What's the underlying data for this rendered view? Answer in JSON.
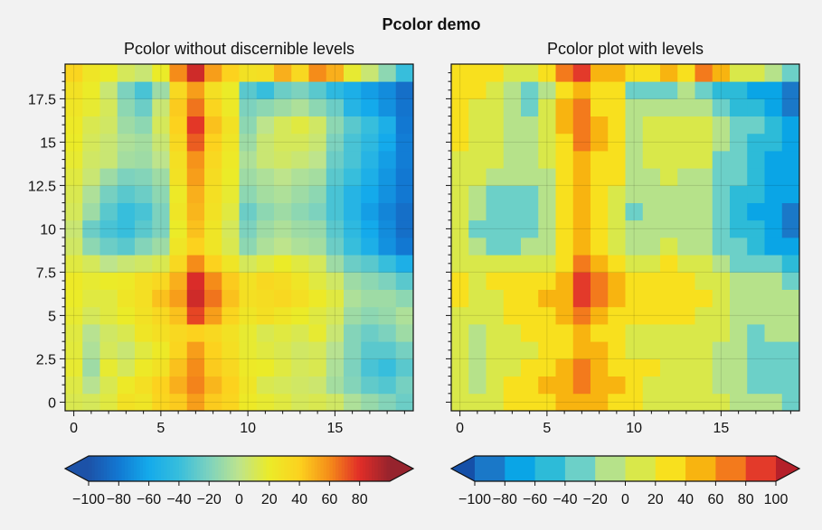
{
  "figure": {
    "suptitle": "Pcolor demo"
  },
  "chart_data": [
    {
      "type": "heatmap",
      "title": "Pcolor without discernible levels",
      "xlabel": "",
      "ylabel": "",
      "xlim": [
        -0.5,
        19.5
      ],
      "ylim": [
        -0.5,
        19.5
      ],
      "grid": true,
      "xticks": [
        0,
        5,
        10,
        15
      ],
      "xtick_labels": [
        "0",
        "5",
        "10",
        "15"
      ],
      "yticks": [
        0,
        2.5,
        5,
        7.5,
        10,
        12.5,
        15,
        17.5
      ],
      "ytick_labels": [
        "0",
        "2.5",
        "5",
        "7.5",
        "10",
        "12.5",
        "15",
        "17.5"
      ],
      "colormap": "continuous",
      "vmin": -100,
      "vmax": 100,
      "colorbar": {
        "ticks": [
          -100,
          -80,
          -60,
          -40,
          -20,
          0,
          20,
          40,
          60,
          80
        ],
        "tick_labels": [
          "−100",
          "−80",
          "−60",
          "−40",
          "−20",
          "0",
          "20",
          "40",
          "60",
          "80"
        ],
        "extend": "both"
      },
      "z": [
        [
          12,
          10,
          15,
          28,
          25,
          38,
          42,
          55,
          42,
          38,
          22,
          18,
          15,
          10,
          12,
          8,
          -5,
          -12,
          -18,
          -25
        ],
        [
          14,
          -2,
          12,
          22,
          30,
          40,
          50,
          62,
          48,
          40,
          25,
          12,
          10,
          8,
          6,
          -8,
          -18,
          -28,
          -32,
          -22
        ],
        [
          18,
          -10,
          18,
          10,
          22,
          28,
          45,
          60,
          42,
          35,
          22,
          20,
          15,
          10,
          12,
          -5,
          -20,
          -35,
          -40,
          -30
        ],
        [
          16,
          -5,
          10,
          5,
          15,
          22,
          38,
          55,
          40,
          30,
          18,
          15,
          12,
          8,
          10,
          -2,
          -18,
          -30,
          -30,
          -22
        ],
        [
          15,
          -2,
          8,
          12,
          25,
          30,
          35,
          40,
          35,
          28,
          18,
          12,
          15,
          12,
          18,
          5,
          -18,
          -25,
          -20,
          -10
        ],
        [
          18,
          10,
          15,
          20,
          28,
          35,
          45,
          75,
          55,
          38,
          25,
          30,
          25,
          20,
          15,
          10,
          -10,
          -15,
          -12,
          -5
        ],
        [
          20,
          15,
          15,
          25,
          30,
          45,
          55,
          85,
          65,
          45,
          30,
          32,
          35,
          30,
          22,
          15,
          -5,
          -10,
          -10,
          -15
        ],
        [
          22,
          18,
          20,
          22,
          30,
          35,
          50,
          82,
          60,
          42,
          28,
          35,
          32,
          25,
          15,
          8,
          -10,
          -15,
          -20,
          -30
        ],
        [
          15,
          10,
          0,
          5,
          8,
          12,
          35,
          60,
          40,
          25,
          10,
          15,
          20,
          15,
          10,
          -10,
          -25,
          -30,
          -40,
          -55
        ],
        [
          8,
          -15,
          -25,
          -30,
          -18,
          -10,
          25,
          40,
          25,
          12,
          -15,
          -5,
          0,
          -5,
          -8,
          -25,
          -40,
          -55,
          -70,
          -80
        ],
        [
          5,
          -25,
          -35,
          -40,
          -30,
          -20,
          20,
          45,
          25,
          10,
          -20,
          -10,
          -5,
          -10,
          -12,
          -30,
          -45,
          -60,
          -72,
          -85
        ],
        [
          10,
          -10,
          -30,
          -40,
          -35,
          -20,
          25,
          48,
          28,
          15,
          -25,
          -15,
          -10,
          -15,
          -20,
          -35,
          -50,
          -65,
          -75,
          -85
        ],
        [
          12,
          -5,
          -22,
          -30,
          -25,
          -15,
          22,
          50,
          30,
          18,
          -15,
          -8,
          -5,
          -10,
          -15,
          -35,
          -50,
          -60,
          -70,
          -80
        ],
        [
          15,
          5,
          -10,
          -20,
          -18,
          -10,
          28,
          55,
          32,
          20,
          -10,
          -5,
          0,
          -5,
          -8,
          -30,
          -40,
          -55,
          -68,
          -80
        ],
        [
          18,
          8,
          5,
          -8,
          -10,
          0,
          30,
          58,
          35,
          22,
          -5,
          5,
          8,
          5,
          0,
          -25,
          -35,
          -50,
          -65,
          -78
        ],
        [
          20,
          10,
          5,
          -5,
          -8,
          5,
          35,
          70,
          40,
          25,
          -10,
          5,
          10,
          10,
          5,
          -20,
          -35,
          -45,
          -60,
          -78
        ],
        [
          22,
          12,
          8,
          -10,
          -15,
          10,
          40,
          78,
          45,
          28,
          -15,
          0,
          10,
          15,
          8,
          -15,
          -30,
          -40,
          -55,
          -80
        ],
        [
          25,
          18,
          10,
          -15,
          -25,
          5,
          42,
          65,
          38,
          22,
          -20,
          -15,
          -10,
          -5,
          -15,
          -25,
          -50,
          -60,
          -70,
          -82
        ],
        [
          28,
          20,
          5,
          -20,
          -35,
          -10,
          35,
          55,
          30,
          20,
          -30,
          -40,
          -25,
          -20,
          -30,
          -45,
          -55,
          -65,
          -72,
          -85
        ],
        [
          38,
          25,
          20,
          10,
          5,
          20,
          60,
          85,
          55,
          40,
          28,
          30,
          50,
          35,
          60,
          50,
          18,
          5,
          -15,
          -40
        ]
      ]
    },
    {
      "type": "heatmap",
      "title": "Pcolor plot with levels",
      "xlabel": "",
      "ylabel": "",
      "xlim": [
        -0.5,
        19.5
      ],
      "ylim": [
        -0.5,
        19.5
      ],
      "grid": true,
      "xticks": [
        0,
        5,
        10,
        15
      ],
      "xtick_labels": [
        "0",
        "5",
        "10",
        "15"
      ],
      "yticks": [
        0,
        2.5,
        5,
        7.5,
        10,
        12.5,
        15,
        17.5
      ],
      "ytick_labels": [
        "",
        "",
        "",
        "",
        "",
        "",
        "",
        ""
      ],
      "colormap": "discrete",
      "levels": [
        -100,
        -80,
        -60,
        -40,
        -20,
        0,
        20,
        40,
        60,
        80,
        100
      ],
      "colorbar": {
        "ticks": [
          -100,
          -80,
          -60,
          -40,
          -20,
          0,
          20,
          40,
          60,
          80,
          100
        ],
        "tick_labels": [
          "−100",
          "−80",
          "−60",
          "−40",
          "−20",
          "0",
          "20",
          "40",
          "60",
          "80",
          "100"
        ],
        "extend": "both"
      },
      "z": [
        [
          12,
          10,
          15,
          28,
          25,
          38,
          42,
          55,
          42,
          38,
          22,
          18,
          15,
          10,
          12,
          8,
          -5,
          -12,
          -18,
          -25
        ],
        [
          14,
          -2,
          12,
          22,
          30,
          40,
          50,
          62,
          48,
          40,
          25,
          12,
          10,
          8,
          6,
          -8,
          -18,
          -28,
          -32,
          -22
        ],
        [
          18,
          -10,
          18,
          10,
          22,
          28,
          45,
          60,
          42,
          35,
          22,
          20,
          15,
          10,
          12,
          -5,
          -20,
          -35,
          -40,
          -30
        ],
        [
          16,
          -5,
          10,
          5,
          15,
          22,
          38,
          55,
          40,
          30,
          18,
          15,
          12,
          8,
          10,
          -2,
          -18,
          -30,
          -30,
          -22
        ],
        [
          15,
          -2,
          8,
          12,
          25,
          30,
          35,
          40,
          35,
          28,
          18,
          12,
          15,
          12,
          18,
          5,
          -18,
          -25,
          -20,
          -10
        ],
        [
          18,
          10,
          15,
          20,
          28,
          35,
          45,
          75,
          55,
          38,
          25,
          30,
          25,
          20,
          15,
          10,
          -10,
          -15,
          -12,
          -5
        ],
        [
          20,
          15,
          15,
          25,
          30,
          45,
          55,
          85,
          65,
          45,
          30,
          32,
          35,
          30,
          22,
          15,
          -5,
          -10,
          -10,
          -15
        ],
        [
          22,
          18,
          20,
          22,
          30,
          35,
          50,
          82,
          60,
          42,
          28,
          35,
          32,
          25,
          15,
          8,
          -10,
          -15,
          -20,
          -30
        ],
        [
          15,
          10,
          0,
          5,
          8,
          12,
          35,
          60,
          40,
          25,
          10,
          15,
          20,
          15,
          10,
          -10,
          -25,
          -30,
          -40,
          -55
        ],
        [
          8,
          -15,
          -25,
          -30,
          -18,
          -10,
          25,
          40,
          25,
          12,
          -15,
          -5,
          0,
          -5,
          -8,
          -25,
          -40,
          -55,
          -70,
          -80
        ],
        [
          5,
          -25,
          -35,
          -40,
          -30,
          -20,
          20,
          45,
          25,
          10,
          -20,
          -10,
          -5,
          -10,
          -12,
          -30,
          -45,
          -60,
          -72,
          -85
        ],
        [
          10,
          -10,
          -30,
          -40,
          -35,
          -20,
          25,
          48,
          28,
          15,
          -25,
          -15,
          -10,
          -15,
          -20,
          -35,
          -50,
          -65,
          -75,
          -85
        ],
        [
          12,
          -5,
          -22,
          -30,
          -25,
          -15,
          22,
          50,
          30,
          18,
          -15,
          -8,
          -5,
          -10,
          -15,
          -35,
          -50,
          -60,
          -70,
          -80
        ],
        [
          15,
          5,
          -10,
          -20,
          -18,
          -10,
          28,
          55,
          32,
          20,
          -10,
          -5,
          0,
          -5,
          -8,
          -30,
          -40,
          -55,
          -68,
          -80
        ],
        [
          18,
          8,
          5,
          -8,
          -10,
          0,
          30,
          58,
          35,
          22,
          -5,
          5,
          8,
          5,
          0,
          -25,
          -35,
          -50,
          -65,
          -78
        ],
        [
          20,
          10,
          5,
          -5,
          -8,
          5,
          35,
          70,
          40,
          25,
          -10,
          5,
          10,
          10,
          5,
          -20,
          -35,
          -45,
          -60,
          -78
        ],
        [
          22,
          12,
          8,
          -10,
          -15,
          10,
          40,
          78,
          45,
          28,
          -15,
          0,
          10,
          15,
          8,
          -15,
          -30,
          -40,
          -55,
          -80
        ],
        [
          25,
          18,
          10,
          -15,
          -25,
          5,
          42,
          65,
          38,
          22,
          -20,
          -15,
          -10,
          -5,
          -15,
          -25,
          -50,
          -60,
          -70,
          -82
        ],
        [
          28,
          20,
          5,
          -20,
          -35,
          -10,
          35,
          55,
          30,
          20,
          -30,
          -40,
          -25,
          -20,
          -30,
          -45,
          -55,
          -65,
          -72,
          -85
        ],
        [
          38,
          25,
          20,
          10,
          5,
          20,
          60,
          85,
          55,
          40,
          28,
          30,
          50,
          35,
          60,
          50,
          18,
          5,
          -15,
          -40
        ]
      ]
    }
  ]
}
